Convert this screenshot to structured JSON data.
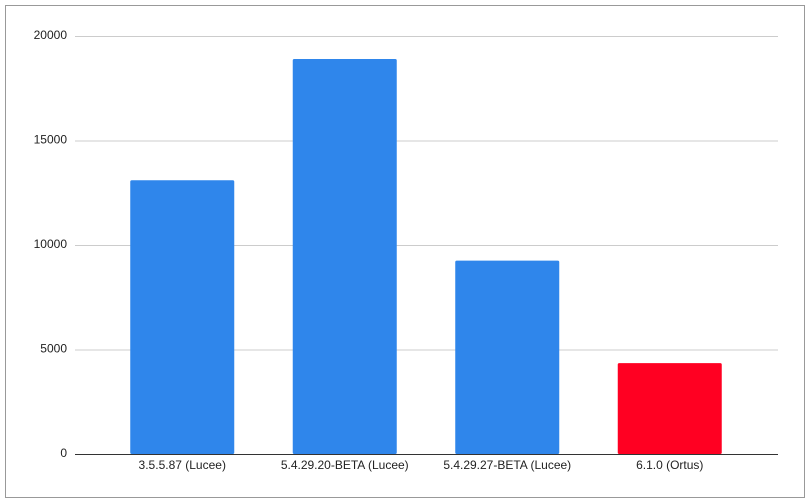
{
  "chart_data": {
    "type": "bar",
    "categories": [
      "3.5.5.87 (Lucee)",
      "5.4.29.20-BETA (Lucee)",
      "5.4.29.27-BETA (Lucee)",
      "6.1.0 (Ortus)"
    ],
    "values": [
      13100,
      18900,
      9250,
      4350
    ],
    "colors": [
      "#2f86eb",
      "#2f86eb",
      "#2f86eb",
      "#ff0022"
    ],
    "ylim": [
      0,
      20000
    ],
    "yticks": [
      0,
      5000,
      10000,
      15000,
      20000
    ],
    "grid": true
  }
}
